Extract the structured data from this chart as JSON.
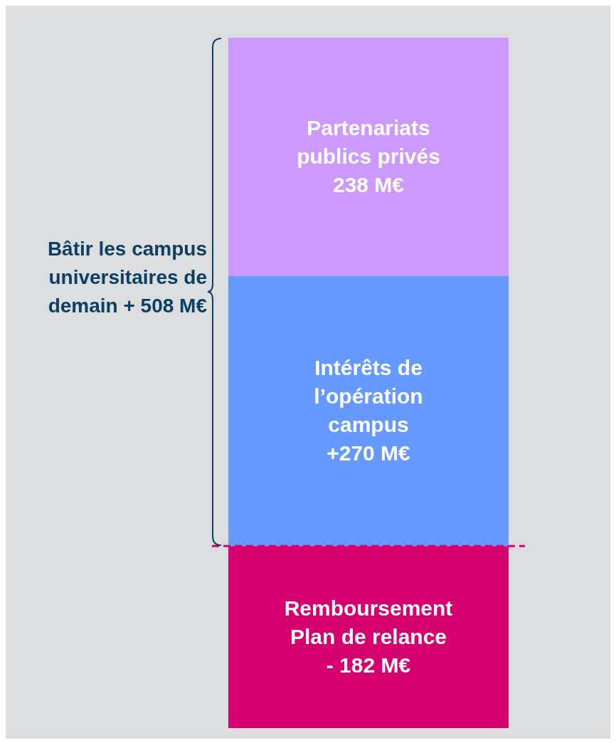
{
  "chart_data": {
    "type": "bar",
    "stacked": true,
    "categories": [
      null
    ],
    "series": [
      {
        "name": "Remboursement Plan de relance",
        "color": "#d6006e",
        "values": [
          -182
        ],
        "value_labels": [
          "- 182 M€"
        ]
      },
      {
        "name": "Intérêts de l’opération campus",
        "color": "#6699ff",
        "values": [
          270
        ],
        "value_labels": [
          "+270 M€"
        ]
      },
      {
        "name": "Partenariats publics privés",
        "color": "#cc99ff",
        "values": [
          238
        ],
        "value_labels": [
          "238 M€"
        ]
      }
    ],
    "ref_lines": [
      {
        "axis": "y",
        "value": 0,
        "color": "#d6006e",
        "line_style": "dashed"
      }
    ],
    "annotations": [
      "Bâtir les campus universitaires de demain + 508 M€"
    ]
  }
}
